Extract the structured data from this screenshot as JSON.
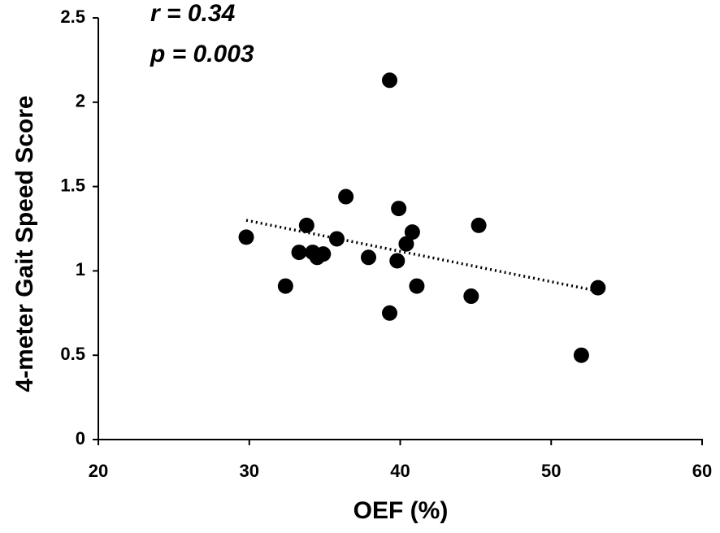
{
  "chart_data": {
    "type": "scatter",
    "x_label": "OEF (%)",
    "y_label": "4-meter Gait Speed Score",
    "annotations": [
      "r = 0.34",
      "p = 0.003"
    ],
    "color": "#000000",
    "x": [
      29.8,
      32.4,
      33.3,
      33.8,
      34.2,
      34.5,
      34.9,
      35.8,
      36.4,
      37.9,
      39.3,
      39.3,
      39.8,
      39.9,
      40.4,
      40.8,
      41.1,
      44.7,
      45.2,
      52.0,
      53.1
    ],
    "values": [
      1.2,
      0.91,
      1.11,
      1.27,
      1.11,
      1.08,
      1.1,
      1.19,
      1.44,
      1.08,
      2.13,
      0.75,
      1.06,
      1.37,
      1.16,
      1.23,
      0.91,
      0.85,
      1.27,
      0.5,
      0.9
    ],
    "trendline": {
      "x": [
        29.8,
        53.1
      ],
      "y": [
        1.3,
        0.88
      ]
    },
    "xlim": [
      20,
      60
    ],
    "xticks": [
      20,
      30,
      40,
      50,
      60
    ],
    "ylim": [
      0,
      2.5
    ],
    "yticks": [
      0,
      0.5,
      1,
      1.5,
      2,
      2.5
    ],
    "grid": false
  }
}
